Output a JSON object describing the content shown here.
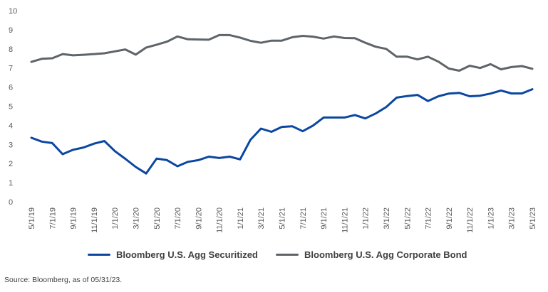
{
  "chart_data": {
    "type": "line",
    "ylim": [
      0,
      10
    ],
    "yticks": [
      "0",
      "1",
      "2",
      "3",
      "4",
      "5",
      "6",
      "7",
      "8",
      "9",
      "10"
    ],
    "x": [
      "5/1/19",
      "6/1/19",
      "7/1/19",
      "8/1/19",
      "9/1/19",
      "10/1/19",
      "11/1/19",
      "12/1/19",
      "1/1/20",
      "2/1/20",
      "3/1/20",
      "4/1/20",
      "5/1/20",
      "6/1/20",
      "7/1/20",
      "8/1/20",
      "9/1/20",
      "10/1/20",
      "11/1/20",
      "12/1/20",
      "1/1/21",
      "2/1/21",
      "3/1/21",
      "4/1/21",
      "5/1/21",
      "6/1/21",
      "7/1/21",
      "8/1/21",
      "9/1/21",
      "10/1/21",
      "11/1/21",
      "12/1/21",
      "1/1/22",
      "2/1/22",
      "3/1/22",
      "4/1/22",
      "5/1/22",
      "6/1/22",
      "7/1/22",
      "8/1/22",
      "9/1/22",
      "10/1/22",
      "11/1/22",
      "12/1/22",
      "1/1/23",
      "2/1/23",
      "3/1/23",
      "4/1/23",
      "5/1/23"
    ],
    "xtick_labels": [
      "5/1/19",
      "7/1/19",
      "9/1/19",
      "11/1/19",
      "1/1/20",
      "3/1/20",
      "5/1/20",
      "7/1/20",
      "9/1/20",
      "11/1/20",
      "1/1/21",
      "3/1/21",
      "5/1/21",
      "7/1/21",
      "9/1/21",
      "11/1/21",
      "1/1/22",
      "3/1/22",
      "5/1/22",
      "7/1/22",
      "9/1/22",
      "11/1/22",
      "1/1/23",
      "3/1/23",
      "5/1/23"
    ],
    "grid": false,
    "legend_position": "bottom",
    "series": [
      {
        "name": "Bloomberg U.S. Agg Securitized",
        "color": "#0b47a1",
        "values": [
          3.35,
          3.15,
          3.07,
          2.49,
          2.72,
          2.84,
          3.04,
          3.18,
          2.65,
          2.25,
          1.82,
          1.48,
          2.26,
          2.18,
          1.86,
          2.09,
          2.18,
          2.36,
          2.29,
          2.36,
          2.22,
          3.25,
          3.83,
          3.66,
          3.92,
          3.95,
          3.69,
          3.99,
          4.41,
          4.41,
          4.41,
          4.54,
          4.36,
          4.62,
          4.96,
          5.45,
          5.53,
          5.59,
          5.27,
          5.52,
          5.66,
          5.7,
          5.52,
          5.55,
          5.66,
          5.82,
          5.67,
          5.67,
          5.89
        ]
      },
      {
        "name": "Bloomberg U.S. Agg Corporate Bond",
        "color": "#5f6468",
        "values": [
          7.32,
          7.48,
          7.51,
          7.73,
          7.66,
          7.69,
          7.73,
          7.77,
          7.87,
          7.97,
          7.7,
          8.07,
          8.22,
          8.38,
          8.65,
          8.5,
          8.49,
          8.48,
          8.72,
          8.72,
          8.59,
          8.42,
          8.32,
          8.43,
          8.43,
          8.61,
          8.68,
          8.64,
          8.54,
          8.65,
          8.57,
          8.56,
          8.32,
          8.11,
          8.0,
          7.59,
          7.59,
          7.45,
          7.59,
          7.33,
          6.97,
          6.86,
          7.12,
          7.0,
          7.2,
          6.93,
          7.05,
          7.1,
          6.96
        ]
      }
    ]
  },
  "source_text": "Source: Bloomberg, as of 05/31/23."
}
